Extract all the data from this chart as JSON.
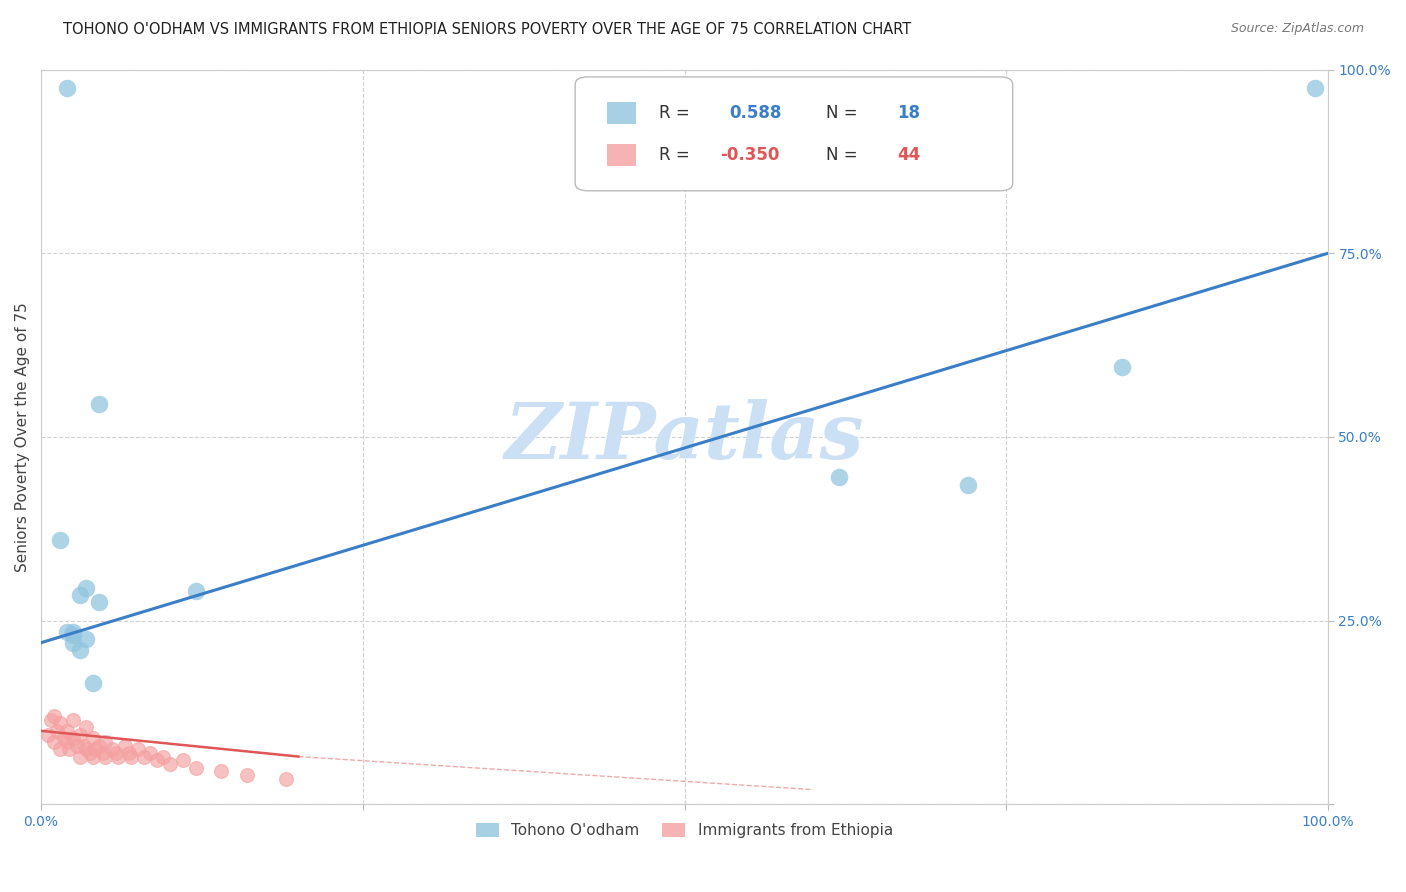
{
  "title": "TOHONO O'ODHAM VS IMMIGRANTS FROM ETHIOPIA SENIORS POVERTY OVER THE AGE OF 75 CORRELATION CHART",
  "source": "Source: ZipAtlas.com",
  "ylabel": "Seniors Poverty Over the Age of 75",
  "xlim": [
    0,
    1.0
  ],
  "ylim": [
    0,
    1.0
  ],
  "blue_R": 0.588,
  "blue_N": 18,
  "pink_R": -0.35,
  "pink_N": 44,
  "blue_color": "#92c5de",
  "pink_color": "#f4a0a0",
  "trend_blue_color": "#3a7ec8",
  "trend_pink_color": "#e05555",
  "watermark": "ZIPatlas",
  "watermark_color": "#cce0f5",
  "blue_points_x": [
    0.02,
    0.045,
    0.045,
    0.015,
    0.02,
    0.025,
    0.03,
    0.035,
    0.12,
    0.62,
    0.72,
    0.84,
    0.99,
    0.025,
    0.035,
    0.04,
    0.025,
    0.03
  ],
  "blue_points_y": [
    0.975,
    0.545,
    0.275,
    0.36,
    0.235,
    0.235,
    0.285,
    0.295,
    0.29,
    0.445,
    0.435,
    0.595,
    0.975,
    0.22,
    0.225,
    0.165,
    0.23,
    0.21
  ],
  "pink_points_x": [
    0.005,
    0.008,
    0.01,
    0.01,
    0.012,
    0.015,
    0.015,
    0.018,
    0.02,
    0.02,
    0.022,
    0.025,
    0.025,
    0.028,
    0.03,
    0.03,
    0.033,
    0.035,
    0.035,
    0.038,
    0.04,
    0.04,
    0.042,
    0.045,
    0.048,
    0.05,
    0.05,
    0.055,
    0.058,
    0.06,
    0.065,
    0.068,
    0.07,
    0.075,
    0.08,
    0.085,
    0.09,
    0.095,
    0.1,
    0.11,
    0.12,
    0.14,
    0.16,
    0.19
  ],
  "pink_points_y": [
    0.095,
    0.115,
    0.085,
    0.12,
    0.1,
    0.075,
    0.11,
    0.09,
    0.085,
    0.1,
    0.075,
    0.09,
    0.115,
    0.08,
    0.065,
    0.095,
    0.08,
    0.075,
    0.105,
    0.07,
    0.065,
    0.09,
    0.075,
    0.08,
    0.07,
    0.065,
    0.085,
    0.075,
    0.07,
    0.065,
    0.08,
    0.07,
    0.065,
    0.075,
    0.065,
    0.07,
    0.06,
    0.065,
    0.055,
    0.06,
    0.05,
    0.045,
    0.04,
    0.035
  ],
  "blue_line_x0": 0.0,
  "blue_line_y0": 0.22,
  "blue_line_x1": 1.0,
  "blue_line_y1": 0.75,
  "pink_line_x0": 0.0,
  "pink_line_y0": 0.1,
  "pink_line_x1": 0.2,
  "pink_line_x1_dash": 0.6,
  "pink_line_y1": 0.065,
  "pink_line_y1_dash": 0.02,
  "title_fontsize": 10.5,
  "axis_label_fontsize": 11,
  "tick_fontsize": 10,
  "source_fontsize": 9
}
